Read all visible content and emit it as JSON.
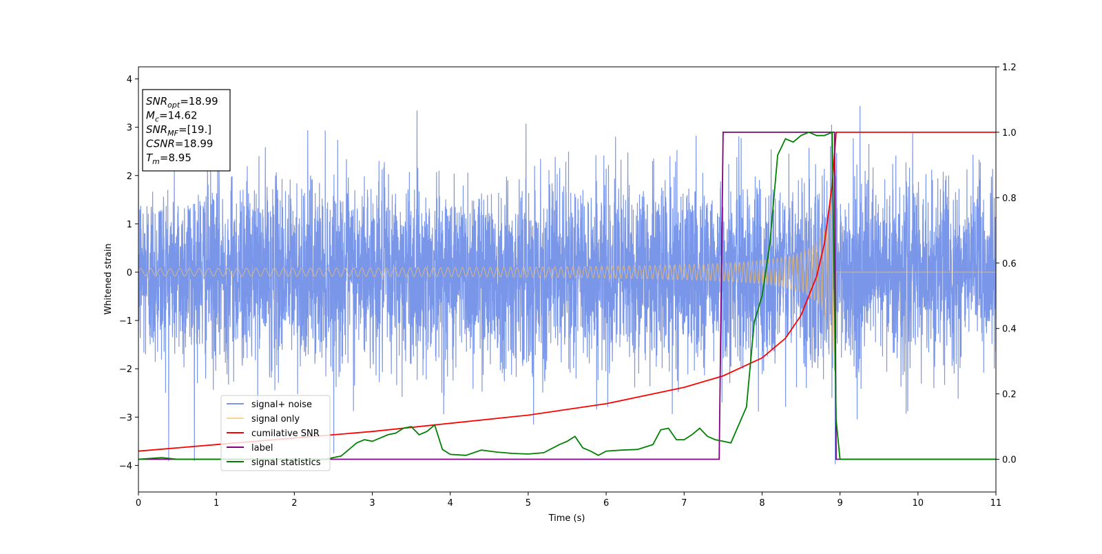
{
  "chart_data": {
    "type": "line",
    "title": "",
    "xlabel": "Time (s)",
    "ylabel": "Whitened strain",
    "y2label": "",
    "xlim": [
      0,
      11
    ],
    "ylim": [
      -4.55,
      4.25
    ],
    "y2lim": [
      -0.1,
      1.2
    ],
    "x_ticks": [
      "0",
      "1",
      "2",
      "3",
      "4",
      "5",
      "6",
      "7",
      "8",
      "9",
      "10",
      "11"
    ],
    "y_ticks": [
      "−4",
      "−3",
      "−2",
      "−1",
      "0",
      "1",
      "2",
      "3",
      "4"
    ],
    "y2_ticks": [
      "0.0",
      "0.2",
      "0.4",
      "0.6",
      "0.8",
      "1.0",
      "1.2"
    ],
    "grid": false,
    "legend_position": "lower-left",
    "info_box": {
      "lines": [
        {
          "base": "SNR",
          "sub": "opt",
          "value": "=18.99"
        },
        {
          "base": "M",
          "sub": "c",
          "value": "=14.62"
        },
        {
          "base": "SNR",
          "sub": "MF",
          "value": "=[19.]"
        },
        {
          "base": "CSNR",
          "sub": "",
          "value": "=18.99"
        },
        {
          "base": "T",
          "sub": "m",
          "value": "=8.95"
        }
      ]
    },
    "series": [
      {
        "name": "signal+ noise",
        "axis": "left",
        "color": "#6b8be6",
        "description": "whitened strain, noise std ~1 (peaks near ±3.5) from t=0 to 11 s"
      },
      {
        "name": "signal only",
        "axis": "left",
        "color": "#f5c26b",
        "description": "chirp waveform, amplitude rising from ~0.05 to ~3.0 at merger t=8.95 s, zero after"
      },
      {
        "name": "cumilative SNR",
        "axis": "right",
        "color": "#ff0000",
        "x": [
          0,
          1,
          2,
          3,
          4,
          5,
          6,
          7,
          7.5,
          8,
          8.3,
          8.5,
          8.7,
          8.8,
          8.9,
          8.95,
          9,
          10,
          11
        ],
        "y": [
          0.025,
          0.045,
          0.065,
          0.085,
          0.11,
          0.135,
          0.17,
          0.22,
          0.255,
          0.31,
          0.37,
          0.44,
          0.56,
          0.66,
          0.84,
          1.0,
          1.0,
          1.0,
          1.0
        ]
      },
      {
        "name": "label",
        "axis": "right",
        "color": "#800080",
        "x": [
          0,
          7.45,
          7.5,
          8.93,
          8.95,
          11
        ],
        "y": [
          0,
          0,
          1,
          1,
          0,
          0
        ]
      },
      {
        "name": "signal statistics",
        "axis": "right",
        "color": "#008000",
        "x": [
          0,
          0.3,
          0.5,
          1.5,
          2.4,
          2.6,
          2.7,
          2.8,
          2.9,
          3.0,
          3.1,
          3.2,
          3.3,
          3.4,
          3.5,
          3.6,
          3.7,
          3.8,
          3.9,
          4.0,
          4.2,
          4.4,
          4.6,
          4.8,
          5.0,
          5.2,
          5.4,
          5.5,
          5.6,
          5.7,
          5.8,
          5.9,
          6.0,
          6.2,
          6.4,
          6.6,
          6.7,
          6.8,
          6.9,
          7.0,
          7.1,
          7.2,
          7.3,
          7.4,
          7.5,
          7.6,
          7.8,
          7.9,
          8.0,
          8.1,
          8.2,
          8.3,
          8.4,
          8.5,
          8.6,
          8.7,
          8.8,
          8.9,
          8.95,
          9.0,
          10,
          11
        ],
        "y": [
          0,
          0.005,
          0,
          0,
          0,
          0.01,
          0.03,
          0.05,
          0.06,
          0.055,
          0.065,
          0.075,
          0.08,
          0.095,
          0.1,
          0.075,
          0.085,
          0.105,
          0.03,
          0.015,
          0.012,
          0.028,
          0.022,
          0.018,
          0.016,
          0.02,
          0.045,
          0.055,
          0.07,
          0.035,
          0.025,
          0.012,
          0.025,
          0.028,
          0.03,
          0.045,
          0.09,
          0.095,
          0.06,
          0.06,
          0.075,
          0.095,
          0.07,
          0.06,
          0.055,
          0.05,
          0.16,
          0.42,
          0.5,
          0.66,
          0.93,
          0.98,
          0.97,
          0.99,
          1.0,
          0.99,
          0.99,
          1.0,
          0.12,
          0,
          0,
          0
        ]
      }
    ]
  }
}
